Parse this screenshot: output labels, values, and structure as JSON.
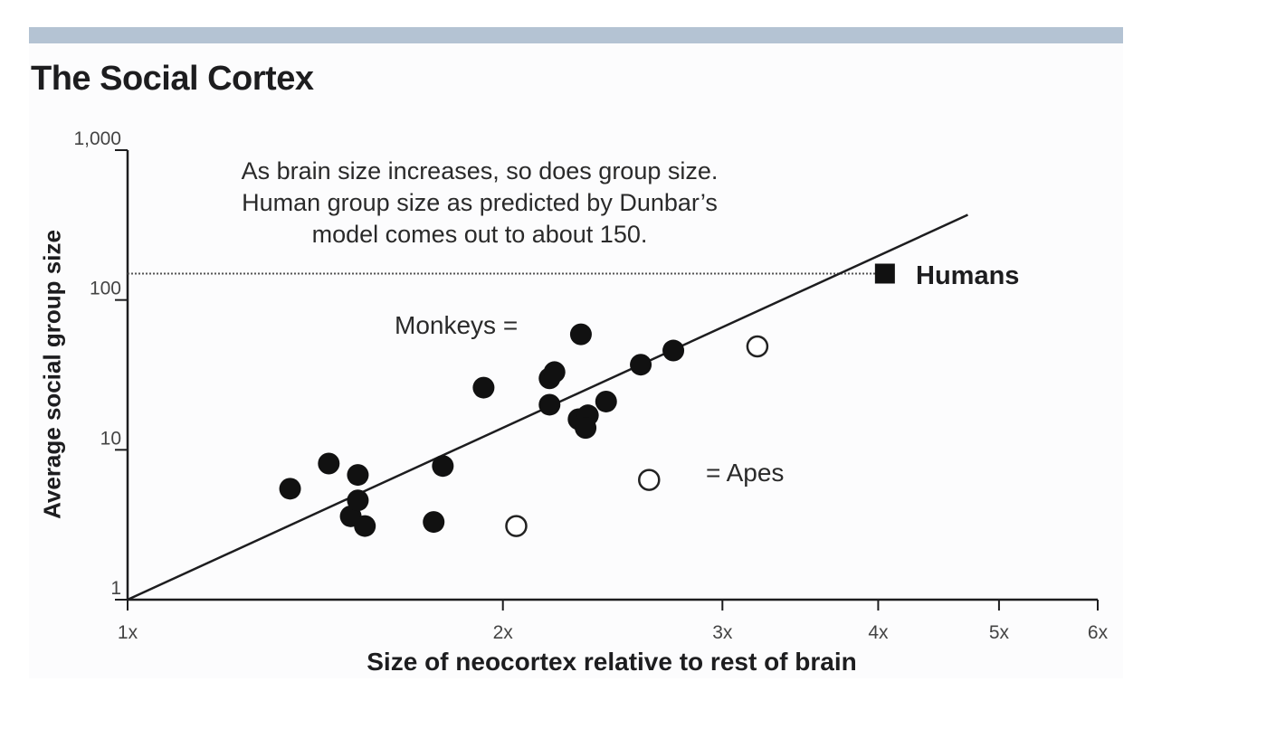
{
  "colors": {
    "band": "#b4c3d3",
    "ink": "#1d1d1f",
    "panel": "#fcfcfd"
  },
  "chart_data": {
    "type": "scatter",
    "title": "The Social Cortex",
    "xlabel": "Size of neocortex relative to rest of brain",
    "ylabel": "Average social group size",
    "x_scale": "log",
    "y_scale": "log",
    "xlim": [
      1,
      6
    ],
    "ylim": [
      1,
      1000
    ],
    "x_ticks": [
      {
        "value": 1,
        "label": "1x"
      },
      {
        "value": 2,
        "label": "2x"
      },
      {
        "value": 3,
        "label": "3x"
      },
      {
        "value": 4,
        "label": "4x"
      },
      {
        "value": 5,
        "label": "5x"
      },
      {
        "value": 6,
        "label": "6x"
      }
    ],
    "y_ticks": [
      {
        "value": 1,
        "label": "1"
      },
      {
        "value": 10,
        "label": "10"
      },
      {
        "value": 100,
        "label": "100"
      },
      {
        "value": 1000,
        "label": "1,000"
      }
    ],
    "grid": false,
    "annotation": [
      "As brain size increases, so does group size.",
      "Human group size as predicted by Dunbar’s",
      "model comes out to about 150."
    ],
    "reference_line": {
      "y": 150,
      "style": "dotted"
    },
    "trend_line": {
      "x": [
        1,
        4.72
      ],
      "y": [
        1,
        370
      ]
    },
    "legend": {
      "monkeys_label": "Monkeys =",
      "apes_label": "= Apes",
      "monkeys_marker": {
        "x": 2.31,
        "y": 59
      },
      "apes_marker": {
        "x": 2.62,
        "y": 6.3
      }
    },
    "series": [
      {
        "marker": "filled-circle",
        "points": [
          {
            "x": 1.35,
            "y": 5.5
          },
          {
            "x": 1.45,
            "y": 8.1
          },
          {
            "x": 1.53,
            "y": 6.8
          },
          {
            "x": 1.51,
            "y": 3.6
          },
          {
            "x": 1.53,
            "y": 4.6
          },
          {
            "x": 1.55,
            "y": 3.1
          },
          {
            "x": 1.76,
            "y": 3.3
          },
          {
            "x": 1.79,
            "y": 7.8
          },
          {
            "x": 1.93,
            "y": 26
          },
          {
            "x": 2.18,
            "y": 30
          },
          {
            "x": 2.2,
            "y": 33
          },
          {
            "x": 2.18,
            "y": 20
          },
          {
            "x": 2.3,
            "y": 16
          },
          {
            "x": 2.34,
            "y": 17
          },
          {
            "x": 2.33,
            "y": 14
          },
          {
            "x": 2.42,
            "y": 21
          },
          {
            "x": 2.58,
            "y": 37
          },
          {
            "x": 2.74,
            "y": 46
          }
        ]
      },
      {
        "marker": "open-circle",
        "points": [
          {
            "x": 2.05,
            "y": 3.1
          },
          {
            "x": 3.2,
            "y": 49
          }
        ]
      },
      {
        "name": "Humans",
        "marker": "filled-square",
        "points": [
          {
            "x": 4.05,
            "y": 150
          }
        ]
      }
    ]
  }
}
